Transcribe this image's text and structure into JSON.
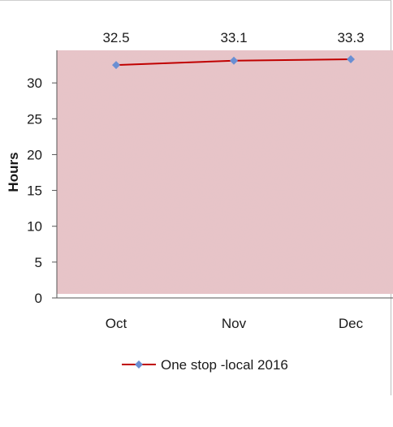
{
  "chart_data": {
    "type": "line",
    "categories": [
      "Oct",
      "Nov",
      "Dec"
    ],
    "series": [
      {
        "name": "One stop -local 2016",
        "values": [
          32.5,
          33.1,
          33.3
        ],
        "color": "#c00000",
        "marker_color": "#6a8fd3"
      }
    ],
    "data_labels": [
      "32.5",
      "33.1",
      "33.3"
    ],
    "ylabel": "Hours",
    "ylim": [
      0,
      35
    ],
    "yticks": [
      0,
      5,
      10,
      15,
      20,
      25,
      30
    ],
    "legend_position": "bottom",
    "plot_background": "#e8c4c8"
  }
}
